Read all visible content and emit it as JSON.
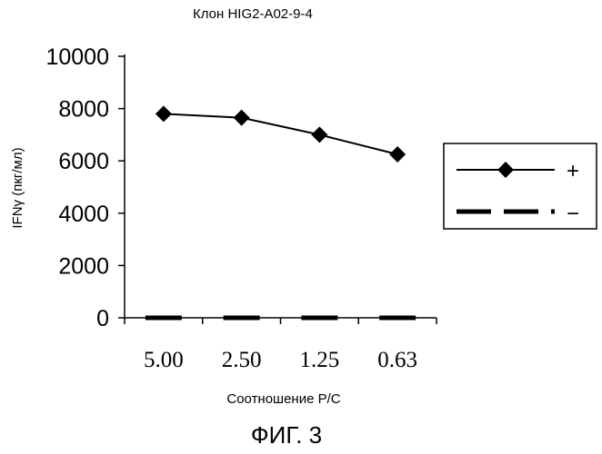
{
  "chart_data": {
    "type": "line",
    "title": "Клон HIG2-A02-9-4",
    "xlabel": "Соотношение P/C",
    "ylabel": "IFNγ (пкг/мл)",
    "categories": [
      "5.00",
      "2.50",
      "1.25",
      "0.63"
    ],
    "ylim": [
      0,
      10000
    ],
    "yticks": [
      "0",
      "2000",
      "4000",
      "6000",
      "8000",
      "10000"
    ],
    "grid": false,
    "legend_position": "right",
    "series": [
      {
        "name": "+",
        "values": [
          7800,
          7650,
          7000,
          6250
        ],
        "color": "#000000",
        "style": "solid-line-diamond"
      },
      {
        "name": "−",
        "values": [
          0,
          0,
          0,
          0
        ],
        "color": "#000000",
        "style": "thick-dashed"
      }
    ]
  },
  "caption": "ФИГ. 3"
}
